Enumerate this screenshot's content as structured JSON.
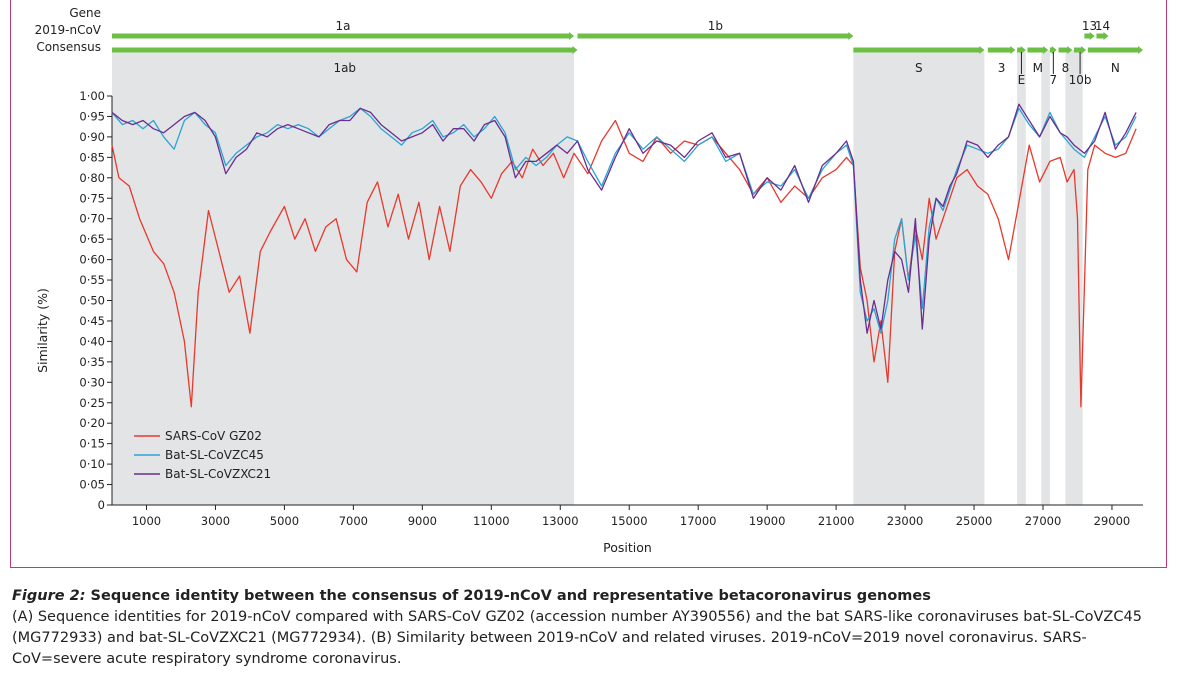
{
  "chart_data": {
    "type": "line",
    "xlabel": "Position",
    "ylabel": "Similarity (%)",
    "xlim": [
      0,
      29900
    ],
    "ylim": [
      0,
      1.0
    ],
    "x_ticks": [
      "1000",
      "3000",
      "5000",
      "7000",
      "9000",
      "11000",
      "13000",
      "15000",
      "17000",
      "19000",
      "21000",
      "23000",
      "25000",
      "27000",
      "29000"
    ],
    "y_ticks": [
      "0",
      "0·05",
      "0·10",
      "0·15",
      "0·20",
      "0·25",
      "0·30",
      "0·35",
      "0·40",
      "0·45",
      "0·50",
      "0·55",
      "0·60",
      "0·65",
      "0·70",
      "0·75",
      "0·80",
      "0·85",
      "0·90",
      "0·95",
      "1·00"
    ],
    "legend_position": "bottom-left",
    "gene_track_labels": [
      "Gene",
      "2019-nCoV",
      "Consensus"
    ],
    "genes_top": [
      {
        "label": "1a",
        "start": 0,
        "end": 13400
      },
      {
        "label": "1b",
        "start": 13500,
        "end": 21500
      },
      {
        "label": "13",
        "start": 28200,
        "end": 28500
      },
      {
        "label": "14",
        "start": 28550,
        "end": 28900
      }
    ],
    "genes_bottom": [
      {
        "label": "1ab",
        "start": 0,
        "end": 13500
      },
      {
        "label": "S",
        "start": 21500,
        "end": 25300
      },
      {
        "label": "3",
        "start": 25400,
        "end": 26200
      },
      {
        "label": "E",
        "start": 26250,
        "end": 26500
      },
      {
        "label": "M",
        "start": 26550,
        "end": 27150
      },
      {
        "label": "7",
        "start": 27200,
        "end": 27400
      },
      {
        "label": "8",
        "start": 27450,
        "end": 27850
      },
      {
        "label": "10b",
        "start": 27900,
        "end": 28250
      },
      {
        "label": "N",
        "start": 28300,
        "end": 29900
      }
    ],
    "shaded_regions": [
      [
        0,
        13400
      ],
      [
        21500,
        25300
      ],
      [
        26250,
        26500
      ],
      [
        26950,
        27200
      ],
      [
        27650,
        28150
      ]
    ],
    "series": [
      {
        "name": "SARS-CoV GZ02",
        "color": "#e8392d",
        "x": [
          0,
          200,
          500,
          800,
          1200,
          1500,
          1800,
          2100,
          2300,
          2500,
          2800,
          3100,
          3400,
          3700,
          4000,
          4300,
          4600,
          5000,
          5300,
          5600,
          5900,
          6200,
          6500,
          6800,
          7100,
          7400,
          7700,
          8000,
          8300,
          8600,
          8900,
          9200,
          9500,
          9800,
          10100,
          10400,
          10700,
          11000,
          11300,
          11600,
          11900,
          12200,
          12500,
          12800,
          13100,
          13400,
          13800,
          14200,
          14600,
          15000,
          15400,
          15800,
          16200,
          16600,
          17000,
          17400,
          17800,
          18200,
          18600,
          19000,
          19400,
          19800,
          20200,
          20600,
          21000,
          21300,
          21500,
          21700,
          21900,
          22100,
          22300,
          22500,
          22700,
          22900,
          23100,
          23300,
          23500,
          23700,
          23900,
          24100,
          24300,
          24500,
          24800,
          25100,
          25400,
          25700,
          26000,
          26300,
          26600,
          26900,
          27200,
          27500,
          27700,
          27900,
          28000,
          28100,
          28300,
          28500,
          28800,
          29100,
          29400,
          29700
        ],
        "y": [
          0.88,
          0.8,
          0.78,
          0.7,
          0.62,
          0.59,
          0.52,
          0.4,
          0.24,
          0.52,
          0.72,
          0.62,
          0.52,
          0.56,
          0.42,
          0.62,
          0.67,
          0.73,
          0.65,
          0.7,
          0.62,
          0.68,
          0.7,
          0.6,
          0.57,
          0.74,
          0.79,
          0.68,
          0.76,
          0.65,
          0.74,
          0.6,
          0.73,
          0.62,
          0.78,
          0.82,
          0.79,
          0.75,
          0.81,
          0.84,
          0.8,
          0.87,
          0.83,
          0.86,
          0.8,
          0.86,
          0.81,
          0.89,
          0.94,
          0.86,
          0.84,
          0.9,
          0.86,
          0.89,
          0.88,
          0.9,
          0.86,
          0.82,
          0.76,
          0.8,
          0.74,
          0.78,
          0.75,
          0.8,
          0.82,
          0.85,
          0.83,
          0.58,
          0.5,
          0.35,
          0.45,
          0.3,
          0.62,
          0.7,
          0.55,
          0.68,
          0.6,
          0.75,
          0.65,
          0.7,
          0.75,
          0.8,
          0.82,
          0.78,
          0.76,
          0.7,
          0.6,
          0.74,
          0.88,
          0.79,
          0.84,
          0.85,
          0.79,
          0.82,
          0.7,
          0.24,
          0.82,
          0.88,
          0.86,
          0.85,
          0.86,
          0.92
        ]
      },
      {
        "name": "Bat-SL-CoVZC45",
        "color": "#2aa4d5",
        "x": [
          0,
          300,
          600,
          900,
          1200,
          1500,
          1800,
          2100,
          2400,
          2700,
          3000,
          3300,
          3600,
          3900,
          4200,
          4500,
          4800,
          5100,
          5400,
          5700,
          6000,
          6300,
          6600,
          6900,
          7200,
          7500,
          7800,
          8100,
          8400,
          8700,
          9000,
          9300,
          9600,
          9900,
          10200,
          10500,
          10800,
          11100,
          11400,
          11700,
          12000,
          12300,
          12600,
          12900,
          13200,
          13500,
          13800,
          14200,
          14600,
          15000,
          15400,
          15800,
          16200,
          16600,
          17000,
          17400,
          17800,
          18200,
          18600,
          19000,
          19400,
          19800,
          20200,
          20600,
          21000,
          21300,
          21500,
          21700,
          21900,
          22100,
          22300,
          22500,
          22700,
          22900,
          23100,
          23300,
          23500,
          23700,
          23900,
          24100,
          24300,
          24500,
          24800,
          25100,
          25400,
          25700,
          26000,
          26300,
          26600,
          26900,
          27200,
          27500,
          27700,
          27900,
          28200,
          28500,
          28800,
          29100,
          29400,
          29700
        ],
        "y": [
          0.96,
          0.93,
          0.94,
          0.92,
          0.94,
          0.9,
          0.87,
          0.94,
          0.96,
          0.93,
          0.91,
          0.83,
          0.86,
          0.88,
          0.9,
          0.91,
          0.93,
          0.92,
          0.93,
          0.92,
          0.9,
          0.92,
          0.94,
          0.95,
          0.97,
          0.95,
          0.92,
          0.9,
          0.88,
          0.91,
          0.92,
          0.94,
          0.9,
          0.91,
          0.93,
          0.9,
          0.92,
          0.95,
          0.91,
          0.82,
          0.85,
          0.83,
          0.85,
          0.88,
          0.9,
          0.89,
          0.84,
          0.78,
          0.86,
          0.91,
          0.87,
          0.9,
          0.87,
          0.84,
          0.88,
          0.9,
          0.84,
          0.86,
          0.76,
          0.79,
          0.78,
          0.82,
          0.75,
          0.82,
          0.86,
          0.88,
          0.83,
          0.52,
          0.45,
          0.48,
          0.42,
          0.5,
          0.65,
          0.7,
          0.55,
          0.66,
          0.48,
          0.68,
          0.75,
          0.72,
          0.77,
          0.82,
          0.88,
          0.87,
          0.86,
          0.87,
          0.9,
          0.97,
          0.93,
          0.9,
          0.96,
          0.91,
          0.89,
          0.87,
          0.85,
          0.9,
          0.95,
          0.88,
          0.9,
          0.95
        ]
      },
      {
        "name": "Bat-SL-CoVZXC21",
        "color": "#6b2d8e",
        "x": [
          0,
          300,
          600,
          900,
          1200,
          1500,
          1800,
          2100,
          2400,
          2700,
          3000,
          3300,
          3600,
          3900,
          4200,
          4500,
          4800,
          5100,
          5400,
          5700,
          6000,
          6300,
          6600,
          6900,
          7200,
          7500,
          7800,
          8100,
          8400,
          8700,
          9000,
          9300,
          9600,
          9900,
          10200,
          10500,
          10800,
          11100,
          11400,
          11700,
          12000,
          12300,
          12600,
          12900,
          13200,
          13500,
          13800,
          14200,
          14600,
          15000,
          15400,
          15800,
          16200,
          16600,
          17000,
          17400,
          17800,
          18200,
          18600,
          19000,
          19400,
          19800,
          20200,
          20600,
          21000,
          21300,
          21500,
          21700,
          21900,
          22100,
          22300,
          22500,
          22700,
          22900,
          23100,
          23300,
          23500,
          23700,
          23900,
          24100,
          24300,
          24500,
          24800,
          25100,
          25400,
          25700,
          26000,
          26300,
          26600,
          26900,
          27200,
          27500,
          27700,
          27900,
          28200,
          28500,
          28800,
          29100,
          29400,
          29700
        ],
        "y": [
          0.96,
          0.94,
          0.93,
          0.94,
          0.92,
          0.91,
          0.93,
          0.95,
          0.96,
          0.94,
          0.9,
          0.81,
          0.85,
          0.87,
          0.91,
          0.9,
          0.92,
          0.93,
          0.92,
          0.91,
          0.9,
          0.93,
          0.94,
          0.94,
          0.97,
          0.96,
          0.93,
          0.91,
          0.89,
          0.9,
          0.91,
          0.93,
          0.89,
          0.92,
          0.92,
          0.89,
          0.93,
          0.94,
          0.9,
          0.8,
          0.84,
          0.84,
          0.86,
          0.88,
          0.86,
          0.89,
          0.82,
          0.77,
          0.85,
          0.92,
          0.86,
          0.89,
          0.88,
          0.85,
          0.89,
          0.91,
          0.85,
          0.86,
          0.75,
          0.8,
          0.77,
          0.83,
          0.74,
          0.83,
          0.86,
          0.89,
          0.84,
          0.55,
          0.42,
          0.5,
          0.43,
          0.55,
          0.62,
          0.6,
          0.52,
          0.7,
          0.43,
          0.65,
          0.75,
          0.73,
          0.78,
          0.81,
          0.89,
          0.88,
          0.85,
          0.88,
          0.9,
          0.98,
          0.94,
          0.9,
          0.95,
          0.91,
          0.9,
          0.88,
          0.86,
          0.89,
          0.96,
          0.87,
          0.91,
          0.96
        ]
      }
    ]
  },
  "caption": {
    "title": "Figure 2: ",
    "bold": "Sequence identity between the consensus of 2019-nCoV and representative betacoronavirus genomes",
    "body": "(A) Sequence identities for 2019-nCoV compared with SARS-CoV GZ02 (accession number AY390556) and the bat SARS-like coronaviruses bat-SL-CoVZC45 (MG772933) and bat-SL-CoVZXC21 (MG772934). (B) Similarity between 2019-nCoV and related viruses. 2019-nCoV=2019 novel coronavirus. SARS-CoV=severe acute respiratory syndrome coronavirus."
  }
}
